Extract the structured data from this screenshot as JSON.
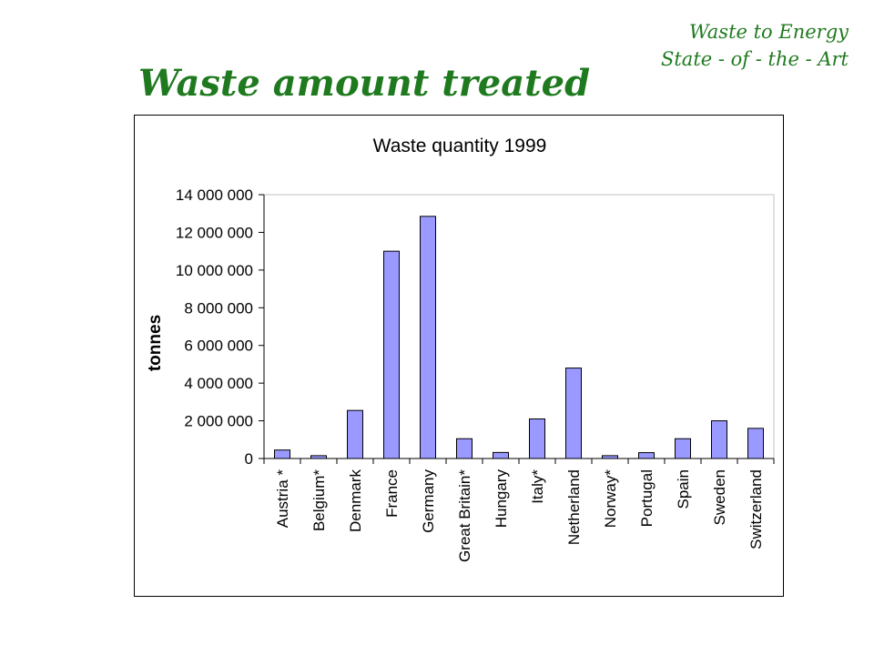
{
  "header": {
    "line1": "Waste to Energy",
    "line2": "State - of - the - Art"
  },
  "slide": {
    "title": "Waste amount treated"
  },
  "colors": {
    "title_green": "#1f7a1f",
    "bar_fill": "#9999ff",
    "bar_stroke": "#000000"
  },
  "chart_data": {
    "type": "bar",
    "title": "Waste quantity 1999",
    "xlabel": "",
    "ylabel": "tonnes",
    "ylim": [
      0,
      14000000
    ],
    "yticks": [
      0,
      2000000,
      4000000,
      6000000,
      8000000,
      10000000,
      12000000,
      14000000
    ],
    "ytick_labels": [
      "0",
      "2 000 000",
      "4 000 000",
      "6 000 000",
      "8 000 000",
      "10 000 000",
      "12 000 000",
      "14 000 000"
    ],
    "grid": false,
    "legend": "none",
    "categories": [
      "Austria *",
      "Belgium*",
      "Denmark",
      "France",
      "Germany",
      "Great Britain*",
      "Hungary",
      "Italy*",
      "Netherland",
      "Norway*",
      "Portugal",
      "Spain",
      "Sweden",
      "Switzerland"
    ],
    "values": [
      450000,
      150000,
      2550000,
      11000000,
      12850000,
      1050000,
      320000,
      2100000,
      4800000,
      150000,
      310000,
      1050000,
      2000000,
      1600000
    ]
  }
}
